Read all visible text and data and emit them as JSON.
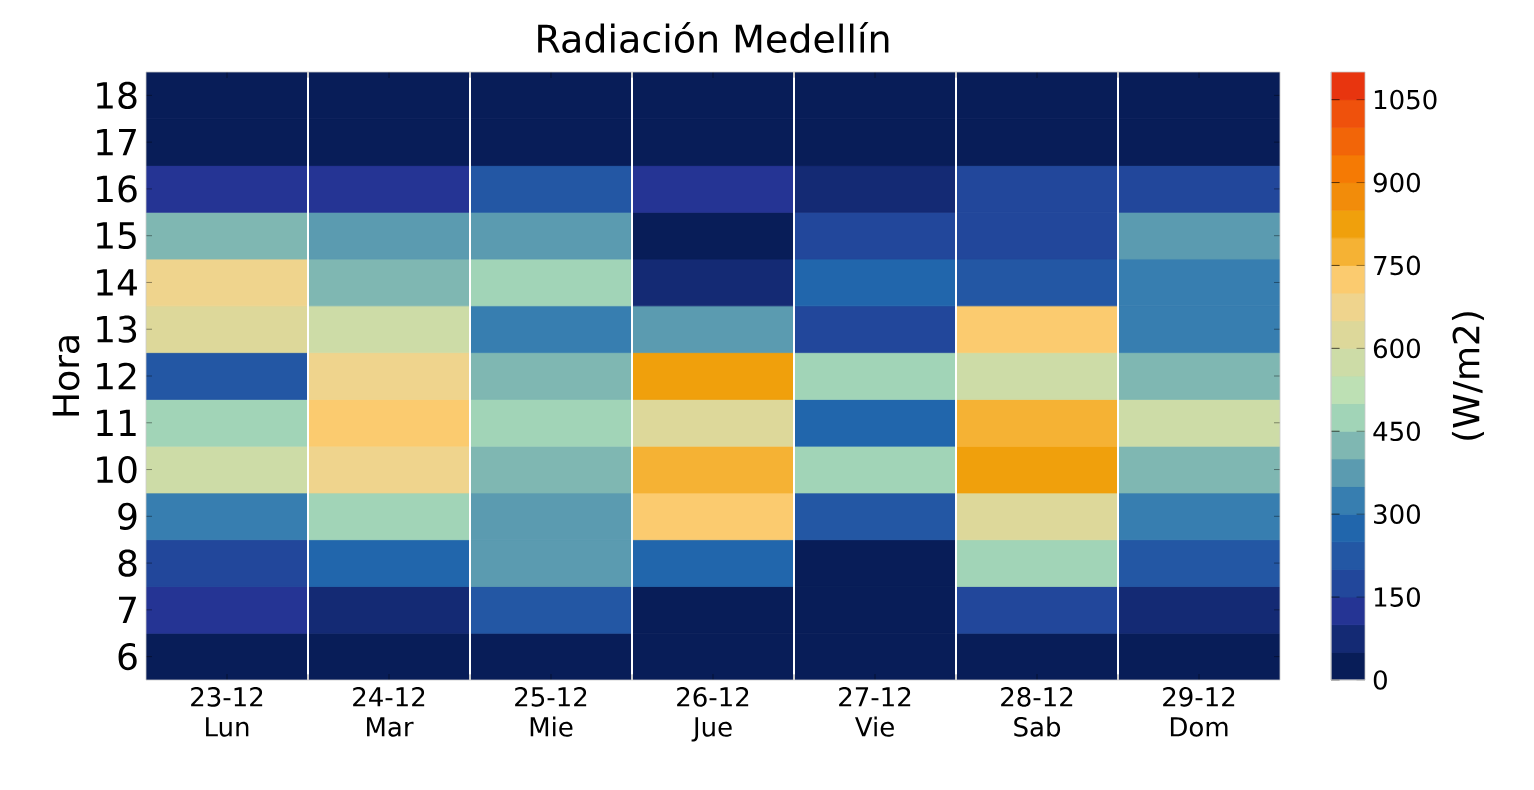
{
  "chart_data": {
    "type": "heatmap",
    "title": "Radiación Medellín",
    "ylabel": "Hora",
    "clabel": "(W/m2)",
    "categories": [
      "23-12 Lun",
      "24-12 Mar",
      "25-12 Mie",
      "26-12 Jue",
      "27-12 Vie",
      "28-12 Sab",
      "29-12 Dom"
    ],
    "y_categories": [
      "18",
      "17",
      "16",
      "15",
      "14",
      "13",
      "12",
      "11",
      "10",
      "9",
      "8",
      "7",
      "6"
    ],
    "cells": [
      [
        25,
        25,
        25,
        25,
        25,
        25,
        25
      ],
      [
        25,
        25,
        25,
        25,
        25,
        25,
        25
      ],
      [
        125,
        125,
        225,
        125,
        75,
        175,
        175
      ],
      [
        425,
        375,
        375,
        25,
        175,
        175,
        375
      ],
      [
        675,
        425,
        475,
        75,
        275,
        225,
        325
      ],
      [
        625,
        575,
        325,
        375,
        175,
        725,
        325
      ],
      [
        225,
        675,
        425,
        825,
        475,
        575,
        425
      ],
      [
        475,
        725,
        475,
        625,
        275,
        775,
        575
      ],
      [
        575,
        675,
        425,
        775,
        475,
        825,
        425
      ],
      [
        325,
        475,
        375,
        725,
        225,
        625,
        325
      ],
      [
        175,
        275,
        375,
        275,
        25,
        475,
        225
      ],
      [
        125,
        75,
        225,
        25,
        25,
        175,
        75
      ],
      [
        25,
        25,
        25,
        25,
        25,
        25,
        25
      ]
    ],
    "clim": [
      0,
      1100
    ],
    "cticks": [
      0,
      150,
      300,
      450,
      600,
      750,
      900,
      1050
    ],
    "grid": "x"
  }
}
